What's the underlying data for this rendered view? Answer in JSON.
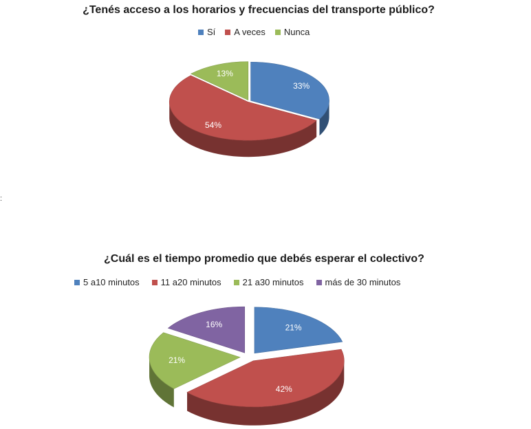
{
  "stray_text": ":",
  "chart_data": [
    {
      "type": "pie",
      "title": "¿Tenés acceso a los horarios y frecuencias del transporte público?",
      "legend_position": "top",
      "categories": [
        "Sí",
        "A veces",
        "Nunca"
      ],
      "values": [
        33,
        54,
        13
      ],
      "labels": [
        "33%",
        "54%",
        "13%"
      ],
      "colors": [
        "#4F81BD",
        "#C0504D",
        "#9BBB59"
      ],
      "exploded": false
    },
    {
      "type": "pie",
      "title": "¿Cuál es el tiempo promedio que debés esperar el colectivo?",
      "legend_position": "top",
      "categories": [
        "5 a10 minutos",
        "11 a20 minutos",
        "21 a30 minutos",
        "más de 30 minutos"
      ],
      "values": [
        21,
        42,
        21,
        16
      ],
      "labels": [
        "21%",
        "42%",
        "21%",
        "16%"
      ],
      "colors": [
        "#4F81BD",
        "#C0504D",
        "#9BBB59",
        "#8064A2"
      ],
      "exploded": true
    }
  ]
}
